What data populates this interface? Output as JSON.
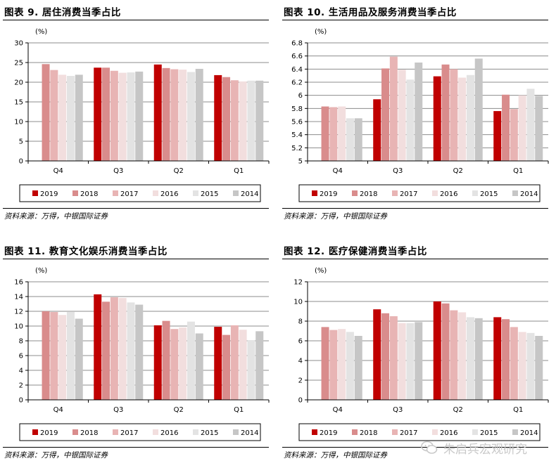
{
  "colors": {
    "2019": "#c00000",
    "2018": "#d98c8c",
    "2017": "#e8b4b4",
    "2016": "#f2dede",
    "2015": "#e3e3e3",
    "2014": "#c6c6c6"
  },
  "source_text": "资料来源：万得，中银国际证券",
  "watermark_text": "朱启兵宏观研究",
  "chart_data": [
    {
      "title": "图表 9. 居住消费当季占比",
      "type": "bar",
      "yunit": "(%)",
      "ylim": [
        0,
        30
      ],
      "yticks": [
        "0",
        "5",
        "10",
        "15",
        "20",
        "25",
        "30"
      ],
      "categories": [
        "Q4",
        "Q3",
        "Q2",
        "Q1"
      ],
      "series": [
        {
          "name": "2019",
          "values": [
            null,
            23.7,
            24.5,
            21.8
          ]
        },
        {
          "name": "2018",
          "values": [
            24.6,
            23.7,
            23.6,
            21.3
          ]
        },
        {
          "name": "2017",
          "values": [
            23.1,
            22.9,
            23.3,
            20.5
          ]
        },
        {
          "name": "2016",
          "values": [
            21.9,
            22.4,
            23.2,
            20.2
          ]
        },
        {
          "name": "2015",
          "values": [
            21.6,
            22.5,
            22.6,
            20.4
          ]
        },
        {
          "name": "2014",
          "values": [
            21.9,
            22.7,
            23.4,
            20.4
          ]
        }
      ]
    },
    {
      "title": "图表 10. 生活用品及服务消费当季占比",
      "type": "bar",
      "yunit": "(%)",
      "ylim": [
        5,
        6.8
      ],
      "yticks": [
        "5",
        "5.2",
        "5.4",
        "5.6",
        "5.8",
        "6",
        "6.2",
        "6.4",
        "6.6",
        "6.8"
      ],
      "categories": [
        "Q4",
        "Q3",
        "Q2",
        "Q1"
      ],
      "series": [
        {
          "name": "2019",
          "values": [
            null,
            5.94,
            6.29,
            5.76
          ]
        },
        {
          "name": "2018",
          "values": [
            5.83,
            6.41,
            6.47,
            6.01
          ]
        },
        {
          "name": "2017",
          "values": [
            5.82,
            6.59,
            6.4,
            5.79
          ]
        },
        {
          "name": "2016",
          "values": [
            5.83,
            6.39,
            6.27,
            6.0
          ]
        },
        {
          "name": "2015",
          "values": [
            5.65,
            6.24,
            6.31,
            6.1
          ]
        },
        {
          "name": "2014",
          "values": [
            5.65,
            6.5,
            6.56,
            5.99
          ]
        }
      ]
    },
    {
      "title": "图表 11. 教育文化娱乐消费当季占比",
      "type": "bar",
      "yunit": "(%)",
      "ylim": [
        0,
        16
      ],
      "yticks": [
        "0",
        "2",
        "4",
        "6",
        "8",
        "10",
        "12",
        "14",
        "16"
      ],
      "categories": [
        "Q4",
        "Q3",
        "Q2",
        "Q1"
      ],
      "series": [
        {
          "name": "2019",
          "values": [
            null,
            14.3,
            10.1,
            9.9
          ]
        },
        {
          "name": "2018",
          "values": [
            12.0,
            13.3,
            10.7,
            8.8
          ]
        },
        {
          "name": "2017",
          "values": [
            11.9,
            13.9,
            9.6,
            10.1
          ]
        },
        {
          "name": "2016",
          "values": [
            11.5,
            13.8,
            9.8,
            9.5
          ]
        },
        {
          "name": "2015",
          "values": [
            11.9,
            13.2,
            10.6,
            8.1
          ]
        },
        {
          "name": "2014",
          "values": [
            11.0,
            12.9,
            9.0,
            9.3
          ]
        }
      ]
    },
    {
      "title": "图表 12. 医疗保健消费当季占比",
      "type": "bar",
      "yunit": "(%)",
      "ylim": [
        0,
        12
      ],
      "yticks": [
        "0",
        "2",
        "4",
        "6",
        "8",
        "10",
        "12"
      ],
      "categories": [
        "Q4",
        "Q3",
        "Q2",
        "Q1"
      ],
      "series": [
        {
          "name": "2019",
          "values": [
            null,
            9.2,
            10.0,
            8.4
          ]
        },
        {
          "name": "2018",
          "values": [
            7.4,
            8.8,
            9.8,
            8.2
          ]
        },
        {
          "name": "2017",
          "values": [
            7.1,
            8.5,
            9.1,
            7.4
          ]
        },
        {
          "name": "2016",
          "values": [
            7.2,
            7.8,
            8.9,
            6.9
          ]
        },
        {
          "name": "2015",
          "values": [
            6.9,
            7.8,
            8.4,
            6.8
          ]
        },
        {
          "name": "2014",
          "values": [
            6.5,
            7.9,
            8.3,
            6.5
          ]
        }
      ]
    }
  ]
}
